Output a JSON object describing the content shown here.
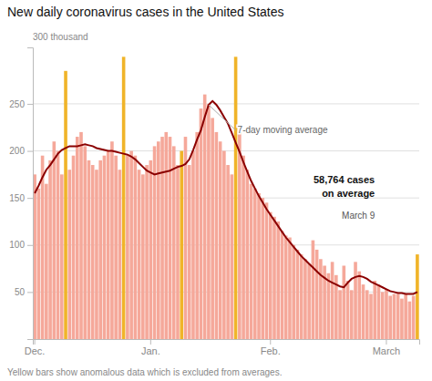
{
  "chart_data": {
    "type": "bar",
    "title": "New daily coronavirus cases in the United States",
    "ylabel": "300 thousand",
    "footnote": "Yellow bars show anomalous data which is excluded from averages.",
    "annotations": [
      "7-day moving average",
      "58,764 cases\non average",
      "March 9"
    ],
    "categories": [
      "Dec.",
      null,
      null,
      null,
      null,
      null,
      null,
      null,
      null,
      null,
      null,
      null,
      null,
      null,
      null,
      null,
      null,
      null,
      null,
      null,
      null,
      null,
      null,
      null,
      null,
      null,
      null,
      null,
      null,
      null,
      "Jan.",
      null,
      null,
      null,
      null,
      null,
      null,
      null,
      null,
      null,
      null,
      null,
      null,
      null,
      null,
      null,
      null,
      null,
      null,
      null,
      null,
      null,
      null,
      null,
      null,
      null,
      null,
      null,
      null,
      null,
      null,
      "Feb.",
      null,
      null,
      null,
      null,
      null,
      null,
      null,
      null,
      null,
      null,
      null,
      null,
      null,
      null,
      null,
      null,
      null,
      null,
      null,
      null,
      null,
      null,
      null,
      null,
      null,
      null,
      null,
      null,
      null,
      "March",
      null,
      null,
      null,
      null,
      null,
      null,
      null,
      null
    ],
    "series": [
      {
        "type": "bar",
        "colors": [
          "#f5a89a",
          "#f5a89a",
          "#f5a89a",
          "#f5a89a",
          "#f5a89a",
          "#f5a89a",
          "#f5a89a",
          "#f5a89a",
          "#f0b429",
          "#f5a89a",
          "#f5a89a",
          "#f5a89a",
          "#f5a89a",
          "#f5a89a",
          "#f5a89a",
          "#f5a89a",
          "#f5a89a",
          "#f5a89a",
          "#f5a89a",
          "#f5a89a",
          "#f5a89a",
          "#f5a89a",
          "#f5a89a",
          "#f0b429",
          "#f5a89a",
          "#f5a89a",
          "#f5a89a",
          "#f5a89a",
          "#f5a89a",
          "#f5a89a",
          "#f5a89a",
          "#f5a89a",
          "#f5a89a",
          "#f5a89a",
          "#f5a89a",
          "#f5a89a",
          "#f5a89a",
          "#f5a89a",
          "#f0b429",
          "#f5a89a",
          "#f5a89a",
          "#f5a89a",
          "#f5a89a",
          "#f5a89a",
          "#f5a89a",
          "#f5a89a",
          "#f5a89a",
          "#f5a89a",
          "#f5a89a",
          "#f5a89a",
          "#f5a89a",
          "#f5a89a",
          "#f0b429",
          "#f5a89a",
          "#f5a89a",
          "#f5a89a",
          "#f5a89a",
          "#f5a89a",
          "#f5a89a",
          "#f5a89a",
          "#f5a89a",
          "#f5a89a",
          "#f5a89a",
          "#f5a89a",
          "#f5a89a",
          "#f5a89a",
          "#f5a89a",
          "#f5a89a",
          "#f5a89a",
          "#f5a89a",
          "#f5a89a",
          "#f5a89a",
          "#f5a89a",
          "#f5a89a",
          "#f5a89a",
          "#f5a89a",
          "#f5a89a",
          "#f5a89a",
          "#f5a89a",
          "#f5a89a",
          "#f5a89a",
          "#f5a89a",
          "#f5a89a",
          "#f5a89a",
          "#f5a89a",
          "#f5a89a",
          "#f5a89a",
          "#f5a89a",
          "#f5a89a",
          "#f5a89a",
          "#f5a89a",
          "#f5a89a",
          "#f5a89a",
          "#f5a89a",
          "#f5a89a",
          "#f5a89a",
          "#f5a89a",
          "#f5a89a",
          "#f5a89a",
          "#f0b429"
        ],
        "values": [
          175,
          160,
          195,
          165,
          190,
          210,
          200,
          175,
          285,
          180,
          195,
          215,
          220,
          205,
          190,
          185,
          180,
          190,
          195,
          200,
          210,
          195,
          180,
          300,
          195,
          200,
          195,
          180,
          175,
          185,
          190,
          205,
          210,
          215,
          220,
          215,
          205,
          185,
          200,
          215,
          185,
          200,
          220,
          245,
          260,
          250,
          235,
          220,
          210,
          200,
          185,
          175,
          300,
          220,
          195,
          180,
          165,
          160,
          155,
          150,
          145,
          135,
          130,
          125,
          115,
          110,
          108,
          100,
          95,
          90,
          85,
          80,
          105,
          95,
          85,
          78,
          70,
          82,
          68,
          52,
          78,
          62,
          52,
          82,
          72,
          58,
          52,
          48,
          62,
          58,
          50,
          53,
          46,
          48,
          48,
          43,
          48,
          40,
          46,
          90
        ]
      },
      {
        "type": "line",
        "color": "#8b0000",
        "values": [
          155,
          163,
          172,
          180,
          185,
          191,
          197,
          201,
          203,
          205,
          205,
          205,
          206,
          207,
          206,
          205,
          203,
          202,
          201,
          200,
          200,
          199,
          198,
          197,
          196,
          194,
          191,
          187,
          183,
          179,
          177,
          175,
          176,
          177,
          178,
          179,
          181,
          183,
          184,
          186,
          191,
          201,
          212,
          222,
          236,
          249,
          253,
          249,
          243,
          236,
          229,
          219,
          209,
          199,
          188,
          178,
          168,
          160,
          152,
          145,
          138,
          132,
          126,
          120,
          114,
          108,
          103,
          98,
          93,
          88,
          84,
          80,
          76,
          72,
          68,
          65,
          62,
          60,
          58,
          56,
          55,
          60,
          64,
          66,
          67,
          66,
          64,
          61,
          59,
          57,
          55,
          53,
          51,
          50,
          49,
          49,
          48,
          48,
          48,
          50
        ]
      }
    ],
    "ylim": [
      0,
      310
    ],
    "yticks": [
      50,
      100,
      150,
      200,
      250
    ],
    "grid": true
  }
}
